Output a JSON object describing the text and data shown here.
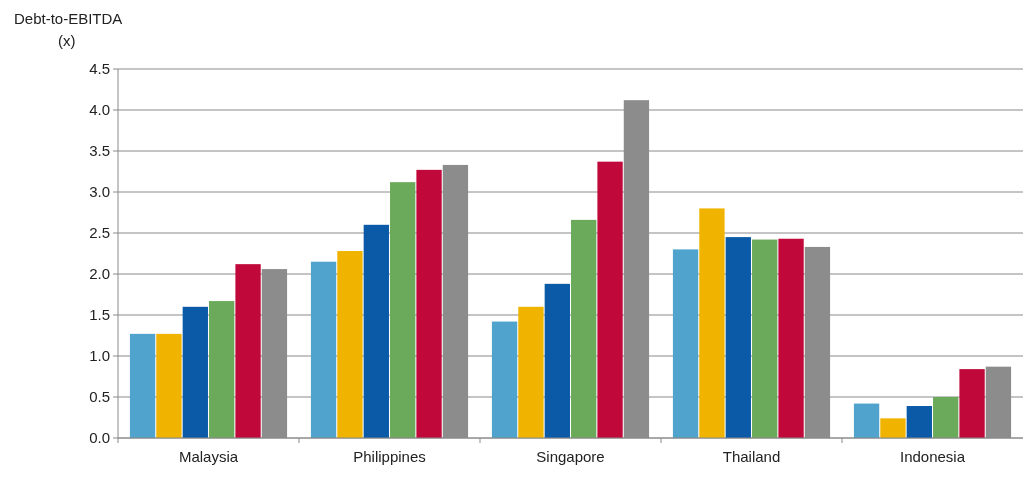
{
  "chart_data": {
    "type": "bar",
    "ylabel": "Debt-to-EBITDA (x)",
    "categories": [
      "Malaysia",
      "Philippines",
      "Singapore",
      "Thailand",
      "Indonesia"
    ],
    "series": [
      {
        "color": "#4fa3cc",
        "values": [
          1.27,
          2.15,
          1.42,
          2.3,
          0.42
        ]
      },
      {
        "color": "#f0b400",
        "values": [
          1.27,
          2.28,
          1.6,
          2.8,
          0.24
        ]
      },
      {
        "color": "#0a5aa8",
        "values": [
          1.6,
          2.6,
          1.88,
          2.45,
          0.39
        ]
      },
      {
        "color": "#6aaa5a",
        "values": [
          1.67,
          3.12,
          2.66,
          2.42,
          0.5
        ]
      },
      {
        "color": "#c0083a",
        "values": [
          2.12,
          3.27,
          3.37,
          2.43,
          0.84
        ]
      },
      {
        "color": "#8c8c8c",
        "values": [
          2.06,
          3.33,
          4.12,
          2.33,
          0.87
        ]
      }
    ],
    "ylim": [
      0,
      4.5
    ],
    "yticks": [
      {
        "value": 0,
        "label": "0.0"
      },
      {
        "value": 0.5,
        "label": "0.5"
      },
      {
        "value": 1,
        "label": "1.0"
      },
      {
        "value": 1.5,
        "label": "1.5"
      },
      {
        "value": 2,
        "label": "2.0"
      },
      {
        "value": 2.5,
        "label": "2.5"
      },
      {
        "value": 3,
        "label": "3.0"
      },
      {
        "value": 3.5,
        "label": "3.5"
      },
      {
        "value": 4,
        "label": "4.0"
      },
      {
        "value": 4.5,
        "label": "4.5"
      }
    ],
    "grid": "y"
  }
}
